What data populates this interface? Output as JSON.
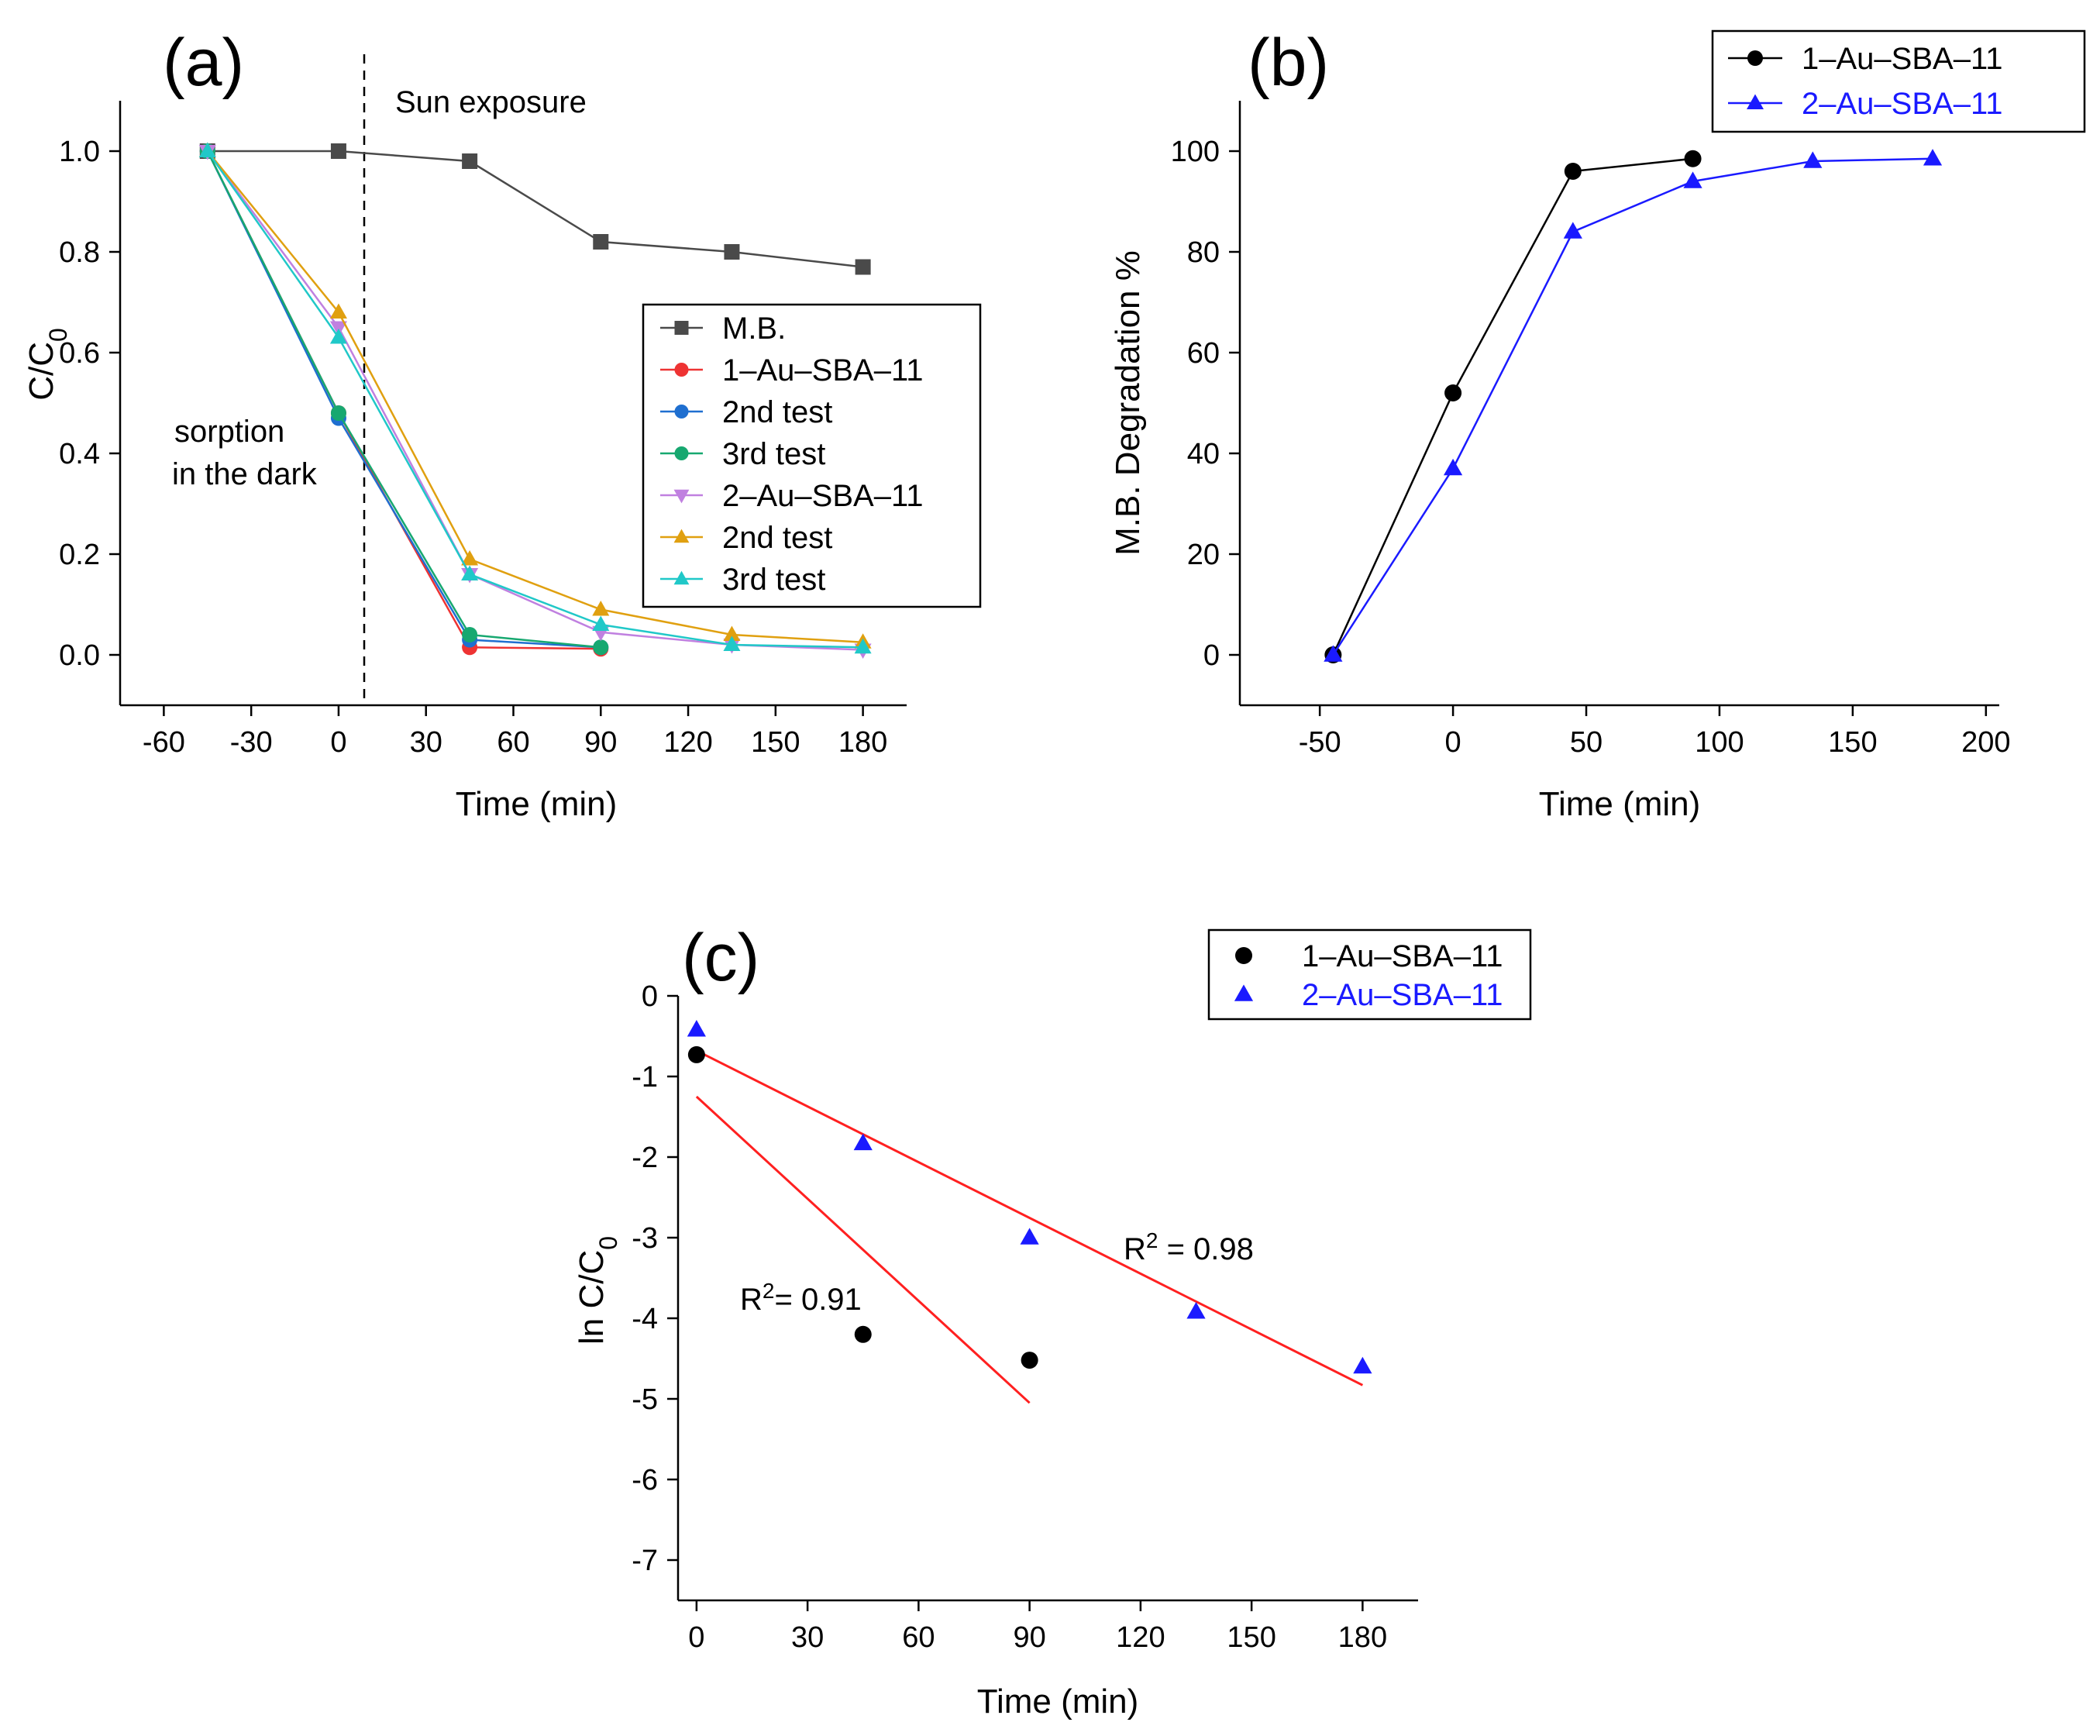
{
  "chart_data": [
    {
      "type": "line",
      "panel_label": "(a)",
      "xlabel": "Time (min)",
      "ylabel": "C/C",
      "ylabel_sub": "0",
      "xlim": [
        -75,
        195
      ],
      "ylim": [
        -0.1,
        1.1
      ],
      "xticks": [
        -60,
        -30,
        0,
        30,
        60,
        90,
        120,
        150,
        180
      ],
      "yticks": [
        0.0,
        0.2,
        0.4,
        0.6,
        0.8,
        1.0
      ],
      "ytick_labels": [
        "0.0",
        "0.2",
        "0.4",
        "0.6",
        "0.8",
        "1.0"
      ],
      "annotations": [
        "Sun exposure",
        "sorption",
        "in the dark"
      ],
      "vline_x": 0,
      "legend_position": "right",
      "series": [
        {
          "name": "M.B.",
          "marker": "square",
          "color": "#4a4a4a",
          "x": [
            -45,
            0,
            45,
            90,
            135,
            180
          ],
          "y": [
            1.0,
            1.0,
            0.98,
            0.82,
            0.8,
            0.77
          ]
        },
        {
          "name": "1–Au–SBA–11",
          "marker": "circle",
          "color": "#ee3333",
          "x": [
            -45,
            0,
            45,
            90
          ],
          "y": [
            1.0,
            0.48,
            0.015,
            0.012
          ]
        },
        {
          "name": "2nd test",
          "marker": "circle",
          "color": "#1f6fd0",
          "x": [
            -45,
            0,
            45,
            90
          ],
          "y": [
            1.0,
            0.47,
            0.03,
            0.015
          ]
        },
        {
          "name": "3rd test",
          "marker": "circle",
          "color": "#17a870",
          "x": [
            -45,
            0,
            45,
            90
          ],
          "y": [
            1.0,
            0.48,
            0.04,
            0.015
          ]
        },
        {
          "name": "2–Au–SBA–11",
          "marker": "triangle-down",
          "color": "#c080e0",
          "x": [
            -45,
            0,
            45,
            90,
            135,
            180
          ],
          "y": [
            1.0,
            0.65,
            0.16,
            0.045,
            0.02,
            0.01
          ]
        },
        {
          "name": "2nd test",
          "marker": "triangle-up",
          "color": "#e0a010",
          "x": [
            -45,
            0,
            45,
            90,
            135,
            180
          ],
          "y": [
            1.0,
            0.68,
            0.19,
            0.09,
            0.04,
            0.025
          ]
        },
        {
          "name": "3rd test",
          "marker": "triangle-up",
          "color": "#20c8c8",
          "x": [
            -45,
            0,
            45,
            90,
            135,
            180
          ],
          "y": [
            1.0,
            0.63,
            0.16,
            0.06,
            0.02,
            0.015
          ]
        }
      ]
    },
    {
      "type": "line",
      "panel_label": "(b)",
      "xlabel": "Time (min)",
      "ylabel": "M.B. Degradation %",
      "xlim": [
        -80,
        205
      ],
      "ylim": [
        -10,
        110
      ],
      "xticks": [
        -50,
        0,
        50,
        100,
        150,
        200
      ],
      "yticks": [
        0,
        20,
        40,
        60,
        80,
        100
      ],
      "legend_position": "top-right",
      "series": [
        {
          "name": "1–Au–SBA–11",
          "marker": "circle",
          "color": "#000000",
          "x": [
            -45,
            0,
            45,
            90
          ],
          "y": [
            0,
            52,
            96,
            98.5
          ]
        },
        {
          "name": "2–Au–SBA–11",
          "marker": "triangle-up",
          "color": "#1a1aff",
          "x": [
            -45,
            0,
            45,
            90,
            135,
            180
          ],
          "y": [
            0,
            37,
            84,
            94,
            98,
            98.5
          ]
        }
      ]
    },
    {
      "type": "scatter",
      "panel_label": "(c)",
      "xlabel": "Time (min)",
      "ylabel": "ln C/C",
      "ylabel_sub": "0",
      "xlim": [
        -5,
        195
      ],
      "ylim": [
        -7.5,
        0
      ],
      "xticks": [
        0,
        30,
        60,
        90,
        120,
        150,
        180
      ],
      "yticks": [
        0,
        -1,
        -2,
        -3,
        -4,
        -5,
        -6,
        -7
      ],
      "legend_position": "top-right",
      "annotations": [
        {
          "base": "R",
          "sup": "2",
          "text": "= 0.91"
        },
        {
          "base": "R",
          "sup": "2",
          "text": " = 0.98"
        }
      ],
      "series": [
        {
          "name": "1–Au–SBA–11",
          "marker": "circle",
          "color": "#000000",
          "x": [
            0,
            45,
            90
          ],
          "y": [
            -0.73,
            -4.2,
            -4.52
          ]
        },
        {
          "name": "2–Au–SBA–11",
          "marker": "triangle-up",
          "color": "#1a1aff",
          "x": [
            0,
            45,
            90,
            135,
            180
          ],
          "y": [
            -0.42,
            -1.83,
            -3.0,
            -3.92,
            -4.6
          ]
        }
      ],
      "fit_lines": [
        {
          "series": "1–Au–SBA–11",
          "color": "#ff2020",
          "x": [
            0,
            90
          ],
          "y": [
            -1.25,
            -5.05
          ]
        },
        {
          "series": "2–Au–SBA–11",
          "color": "#ff2020",
          "x": [
            0,
            180
          ],
          "y": [
            -0.68,
            -4.83
          ]
        }
      ]
    }
  ]
}
